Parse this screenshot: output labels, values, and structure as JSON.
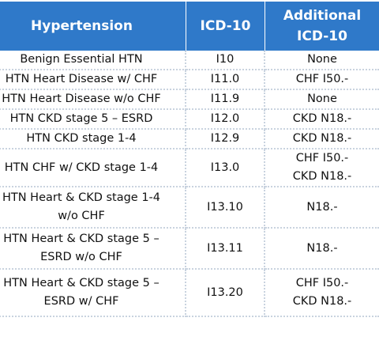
{
  "table": {
    "headers": {
      "condition": "Hypertension",
      "icd10": "ICD-10",
      "additional": [
        "Additional",
        "ICD-10"
      ]
    },
    "rows": [
      {
        "condition": [
          "Benign Essential HTN"
        ],
        "icd10": "I10",
        "additional": [
          "None"
        ]
      },
      {
        "condition": [
          "HTN Heart Disease w/ CHF"
        ],
        "icd10": "I11.0",
        "additional": [
          "CHF I50.-"
        ]
      },
      {
        "condition": [
          "HTN Heart Disease w/o CHF"
        ],
        "icd10": "I11.9",
        "additional": [
          "None"
        ]
      },
      {
        "condition": [
          "HTN CKD stage 5 – ESRD"
        ],
        "icd10": "I12.0",
        "additional": [
          "CKD N18.-"
        ]
      },
      {
        "condition": [
          "HTN CKD stage 1-4"
        ],
        "icd10": "I12.9",
        "additional": [
          "CKD N18.-"
        ]
      },
      {
        "condition": [
          "HTN CHF w/  CKD stage 1-4"
        ],
        "icd10": "I13.0",
        "additional": [
          "CHF I50.-",
          "CKD N18.-"
        ]
      },
      {
        "condition": [
          "HTN Heart & CKD  stage 1-4",
          "w/o  CHF"
        ],
        "icd10": "I13.10",
        "additional": [
          "N18.-"
        ]
      },
      {
        "condition": [
          "HTN Heart & CKD stage 5 –",
          "ESRD w/o CHF"
        ],
        "icd10": "I13.11",
        "additional": [
          "N18.-"
        ]
      },
      {
        "condition": [
          "HTN Heart & CKD stage 5 –",
          "ESRD w/ CHF"
        ],
        "icd10": "I13.20",
        "additional": [
          "CHF I50.-",
          "CKD N18.-"
        ]
      }
    ]
  },
  "colors": {
    "header_bg": "#2f79c9",
    "header_text": "#ffffff",
    "divider": "#c9d3df"
  }
}
